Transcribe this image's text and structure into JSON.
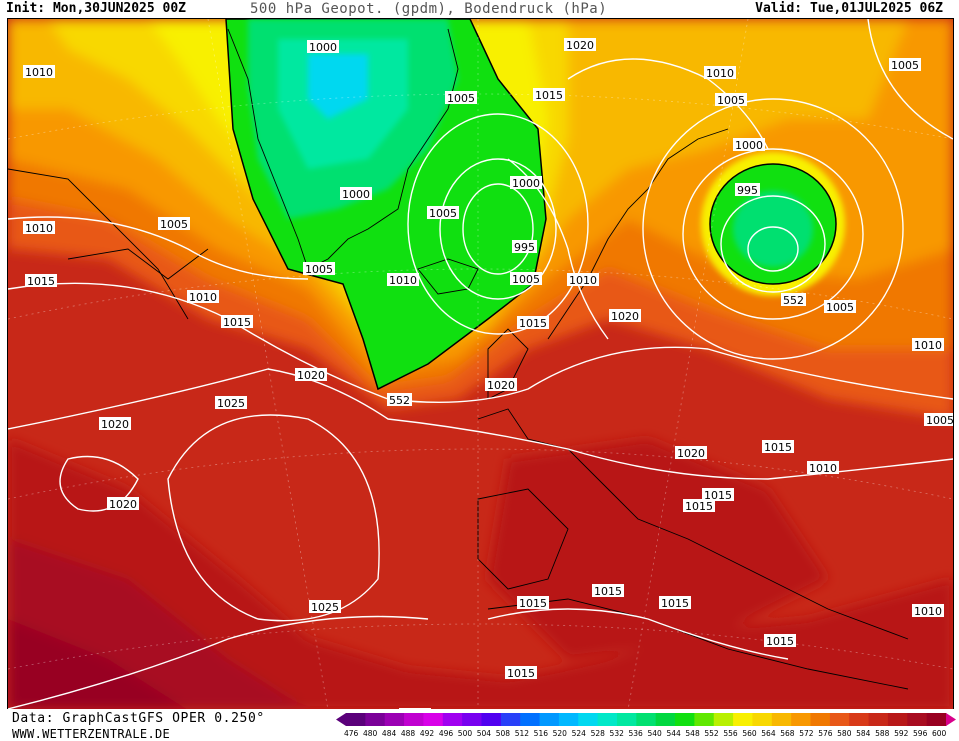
{
  "header": {
    "init": "Init: Mon,30JUN2025 00Z",
    "title": "500 hPa Geopot. (gpdm), Bodendruck (hPa)",
    "valid": "Valid: Tue,01JUL2025 06Z"
  },
  "footer": {
    "data_source": "Data: GraphCastGFS OPER 0.250°",
    "website": "WWW.WETTERZENTRALE.DE"
  },
  "legend": {
    "ticks": [
      "476",
      "480",
      "484",
      "488",
      "492",
      "496",
      "500",
      "504",
      "508",
      "512",
      "516",
      "520",
      "524",
      "528",
      "532",
      "536",
      "540",
      "544",
      "548",
      "552",
      "556",
      "560",
      "564",
      "568",
      "572",
      "576",
      "580",
      "584",
      "588",
      "592",
      "596",
      "600"
    ],
    "colors": [
      "#5a007a",
      "#7a0098",
      "#9b00b4",
      "#c000d0",
      "#d800e8",
      "#a000f0",
      "#7800f0",
      "#5000f0",
      "#2840f8",
      "#0070ff",
      "#0098ff",
      "#00b8ff",
      "#00d8f0",
      "#00e8c8",
      "#00e8a0",
      "#00e070",
      "#00d840",
      "#10e010",
      "#60e800",
      "#b8f000",
      "#f8f000",
      "#f8d800",
      "#f8b800",
      "#f89800",
      "#f07800",
      "#e85818",
      "#d83a18",
      "#c82818",
      "#b81818",
      "#a80c20",
      "#980020",
      "#d8008a"
    ]
  },
  "map": {
    "contour_labels": [
      {
        "text": "1000",
        "ref": "greenland-n"
      },
      {
        "text": "1020",
        "ref": "norway-sea-n"
      },
      {
        "text": "1010",
        "ref": "barents-w"
      },
      {
        "text": "1005",
        "ref": "ne-corner"
      },
      {
        "text": "1010",
        "ref": "canada-nw"
      },
      {
        "text": "1005",
        "ref": "greenland-c"
      },
      {
        "text": "1015",
        "ref": "svalbard-s"
      },
      {
        "text": "1005",
        "ref": "kola"
      },
      {
        "text": "1000",
        "ref": "russia-low-n"
      },
      {
        "text": "1000",
        "ref": "greenland-s"
      },
      {
        "text": "1000",
        "ref": "iceland-low"
      },
      {
        "text": "995",
        "ref": "russia-low"
      },
      {
        "text": "1005",
        "ref": "labrador"
      },
      {
        "text": "1005",
        "ref": "greenland-se"
      },
      {
        "text": "1010",
        "ref": "canada-w"
      },
      {
        "text": "995",
        "ref": "iceland-low-s"
      },
      {
        "text": "1015",
        "ref": "newfoundland-w"
      },
      {
        "text": "1005",
        "ref": "cape-farewell"
      },
      {
        "text": "1010",
        "ref": "atlantic-n"
      },
      {
        "text": "1005",
        "ref": "faroe"
      },
      {
        "text": "1010",
        "ref": "scandinavia"
      },
      {
        "text": "1010",
        "ref": "labrador-s"
      },
      {
        "text": "552",
        "ref": "russia-552"
      },
      {
        "text": "1005",
        "ref": "russia-s"
      },
      {
        "text": "1020",
        "ref": "baltic"
      },
      {
        "text": "1015",
        "ref": "newfoundland"
      },
      {
        "text": "1015",
        "ref": "north-sea"
      },
      {
        "text": "1010",
        "ref": "urals"
      },
      {
        "text": "1020",
        "ref": "atlantic-c"
      },
      {
        "text": "552",
        "ref": "atlantic-552"
      },
      {
        "text": "1020",
        "ref": "ireland"
      },
      {
        "text": "1025",
        "ref": "azores-n"
      },
      {
        "text": "1020",
        "ref": "atlantic-w"
      },
      {
        "text": "1005",
        "ref": "caspian-n"
      },
      {
        "text": "1015",
        "ref": "ukraine"
      },
      {
        "text": "1020",
        "ref": "alps"
      },
      {
        "text": "1010",
        "ref": "black-sea"
      },
      {
        "text": "1020",
        "ref": "atlantic-sw"
      },
      {
        "text": "1015",
        "ref": "adriatic"
      },
      {
        "text": "1015",
        "ref": "balkans"
      },
      {
        "text": "1015",
        "ref": "med-c"
      },
      {
        "text": "1015",
        "ref": "med-w"
      },
      {
        "text": "1015",
        "ref": "ionian"
      },
      {
        "text": "1025",
        "ref": "atlantic-s"
      },
      {
        "text": "1010",
        "ref": "middle-east"
      },
      {
        "text": "1015",
        "ref": "libya"
      },
      {
        "text": "1015",
        "ref": "morocco"
      },
      {
        "text": "1015",
        "ref": "sahara"
      }
    ]
  }
}
